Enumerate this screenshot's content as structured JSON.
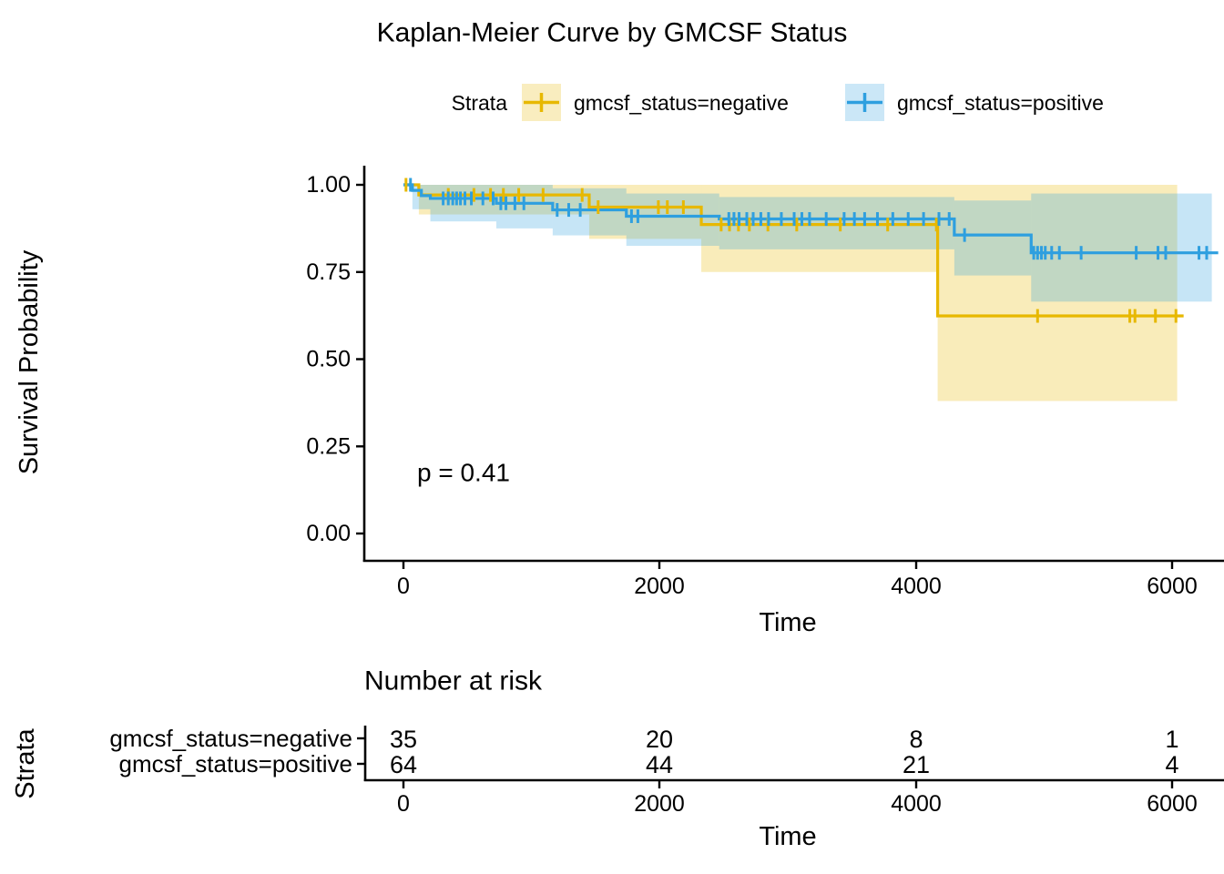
{
  "title": "Kaplan-Meier Curve by GMCSF Status",
  "legend": {
    "title": "Strata",
    "items": [
      {
        "label": "gmcsf_status=negative",
        "color": "#E7B800"
      },
      {
        "label": "gmcsf_status=positive",
        "color": "#2E9FDF"
      }
    ]
  },
  "axes": {
    "ylabel": "Survival Probability",
    "xlabel": "Time",
    "yticks": [
      "1.00",
      "0.75",
      "0.50",
      "0.25",
      "0.00"
    ],
    "xticks": [
      "0",
      "2000",
      "4000",
      "6000"
    ]
  },
  "annotations": {
    "pvalue": "p = 0.41"
  },
  "risk_table": {
    "title": "Number at risk",
    "ylabel": "Strata",
    "xlabel": "Time",
    "xticks": [
      "0",
      "2000",
      "4000",
      "6000"
    ],
    "rows": [
      {
        "label": "gmcsf_status=negative",
        "color": "#E7B800",
        "values": [
          "35",
          "20",
          "8",
          "1"
        ]
      },
      {
        "label": "gmcsf_status=positive",
        "color": "#2E9FDF",
        "values": [
          "64",
          "44",
          "21",
          "4"
        ]
      }
    ]
  },
  "chart_data": {
    "type": "line",
    "subtype": "kaplan-meier-step",
    "title": "Kaplan-Meier Curve by GMCSF Status",
    "xlabel": "Time",
    "ylabel": "Survival Probability",
    "xlim": [
      0,
      6400
    ],
    "ylim": [
      0,
      1
    ],
    "xticks": [
      0,
      2000,
      4000,
      6000
    ],
    "yticks": [
      0,
      0.25,
      0.5,
      0.75,
      1
    ],
    "pvalue": "p = 0.41",
    "legend_position": "top",
    "grid": false,
    "band_opacity": 0.27,
    "series": [
      {
        "name": "gmcsf_status=negative",
        "color": "#E7B800",
        "n_at_risk": {
          "times": [
            0,
            2000,
            4000,
            6000
          ],
          "counts": [
            35,
            20,
            8,
            1
          ]
        },
        "steps": [
          [
            0,
            1.0
          ],
          [
            120,
            0.971
          ],
          [
            1450,
            0.936
          ],
          [
            2325,
            0.886
          ],
          [
            4170,
            0.624
          ]
        ],
        "end_time": 6090,
        "censors": [
          20,
          350,
          550,
          680,
          780,
          900,
          1090,
          1395,
          1520,
          1990,
          2060,
          2185,
          2480,
          2545,
          2615,
          2700,
          2845,
          3070,
          3410,
          3780,
          4160,
          4950,
          5670,
          5710,
          5870,
          6030
        ],
        "ci": [
          [
            120,
            1450,
            0.915,
            1.0
          ],
          [
            1450,
            2325,
            0.845,
            1.0
          ],
          [
            2325,
            4170,
            0.75,
            1.0
          ],
          [
            4170,
            6040,
            0.38,
            1.0
          ]
        ]
      },
      {
        "name": "gmcsf_status=positive",
        "color": "#2E9FDF",
        "n_at_risk": {
          "times": [
            0,
            2000,
            4000,
            6000
          ],
          "counts": [
            64,
            44,
            21,
            4
          ]
        },
        "steps": [
          [
            0,
            1.0
          ],
          [
            70,
            0.984
          ],
          [
            140,
            0.969
          ],
          [
            210,
            0.961
          ],
          [
            725,
            0.947
          ],
          [
            1165,
            0.928
          ],
          [
            1740,
            0.91
          ],
          [
            2465,
            0.902
          ],
          [
            4300,
            0.856
          ],
          [
            4900,
            0.805
          ]
        ],
        "end_time": 6360,
        "censors": [
          55,
          310,
          350,
          385,
          415,
          445,
          480,
          530,
          620,
          700,
          760,
          800,
          870,
          940,
          1200,
          1290,
          1380,
          1780,
          1830,
          2540,
          2580,
          2620,
          2680,
          2730,
          2790,
          2850,
          2950,
          3050,
          3110,
          3170,
          3300,
          3440,
          3520,
          3600,
          3700,
          3820,
          3940,
          4060,
          4180,
          4260,
          4380,
          4920,
          4950,
          4980,
          5010,
          5060,
          5120,
          5290,
          5720,
          5890,
          5950,
          6210,
          6270
        ],
        "ci": [
          [
            70,
            210,
            0.93,
            1.0
          ],
          [
            210,
            725,
            0.895,
            1.0
          ],
          [
            725,
            1165,
            0.875,
            1.0
          ],
          [
            1165,
            1740,
            0.855,
            0.99
          ],
          [
            1740,
            2465,
            0.825,
            0.975
          ],
          [
            2465,
            4300,
            0.815,
            0.965
          ],
          [
            4300,
            4900,
            0.74,
            0.955
          ],
          [
            4900,
            6310,
            0.665,
            0.975
          ]
        ]
      }
    ]
  }
}
